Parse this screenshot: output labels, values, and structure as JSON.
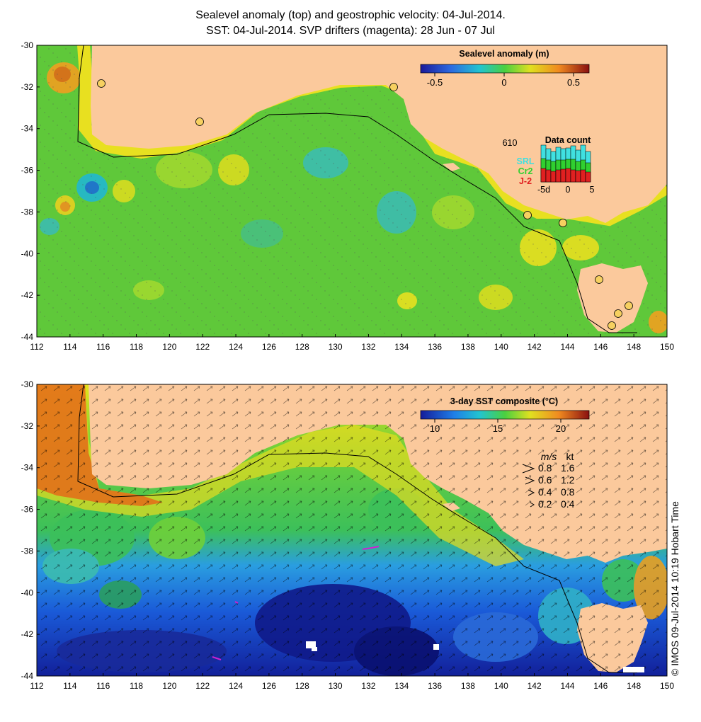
{
  "title": {
    "line1": "Sealevel anomaly (top) and geostrophic velocity: 04-Jul-2014.",
    "line2": "SST: 04-Jul-2014. SVP drifters (magenta): 28 Jun - 07 Jul"
  },
  "axes": {
    "lat_labels": [
      "-30",
      "-32",
      "-34",
      "-36",
      "-38",
      "-40",
      "-42",
      "-44"
    ],
    "lon_labels": [
      "112",
      "114",
      "116",
      "118",
      "120",
      "122",
      "124",
      "126",
      "128",
      "130",
      "132",
      "134",
      "136",
      "138",
      "140",
      "142",
      "144",
      "146",
      "148",
      "150"
    ]
  },
  "top_panel": {
    "colorbar_title": "Sealevel anomaly (m)",
    "colorbar_ticks": [
      "-0.5",
      "0",
      "0.5"
    ],
    "data_count": {
      "max_label": "610",
      "title": "Data count",
      "series": [
        "SRL",
        "Cr2",
        "J-2"
      ],
      "x_ticks": [
        "-5d",
        "0",
        "5"
      ]
    }
  },
  "bottom_panel": {
    "colorbar_title": "3-day SST composite (°C)",
    "colorbar_ticks": [
      "10",
      "15",
      "20"
    ],
    "speed_legend": {
      "header_ms": "m/s",
      "header_kt": "kt",
      "rows": [
        {
          "ms": "0.8",
          "kt": "1.6"
        },
        {
          "ms": "0.6",
          "kt": "1.2"
        },
        {
          "ms": "0.4",
          "kt": "0.8"
        },
        {
          "ms": "0.2",
          "kt": "0.4"
        }
      ]
    }
  },
  "credit": "© IMOS 09-Jul-2014 10:19 Hobart Time",
  "colors": {
    "land": "#fbc99c",
    "ocean_mid": "#5fc83a",
    "ocean_high": "#e6e21a",
    "ocean_low": "#2aa6a0",
    "sst_warm": "#e2701a",
    "sst_cool": "#1f7fe8",
    "sst_cold": "#10208f",
    "drifter": "#d020d0"
  }
}
